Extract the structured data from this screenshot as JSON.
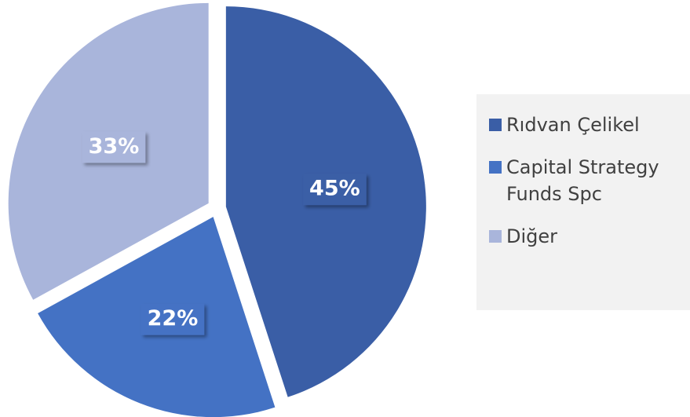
{
  "chart_data": {
    "type": "pie",
    "categories": [
      "Rıdvan Çelikel",
      "Capital Strategy Funds Spc",
      "Diğer"
    ],
    "values": [
      45,
      22,
      33
    ],
    "value_labels": [
      "45%",
      "22%",
      "33%"
    ],
    "colors": [
      "#3a5ea6",
      "#4472c4",
      "#a9b5db"
    ],
    "legend": "right"
  }
}
